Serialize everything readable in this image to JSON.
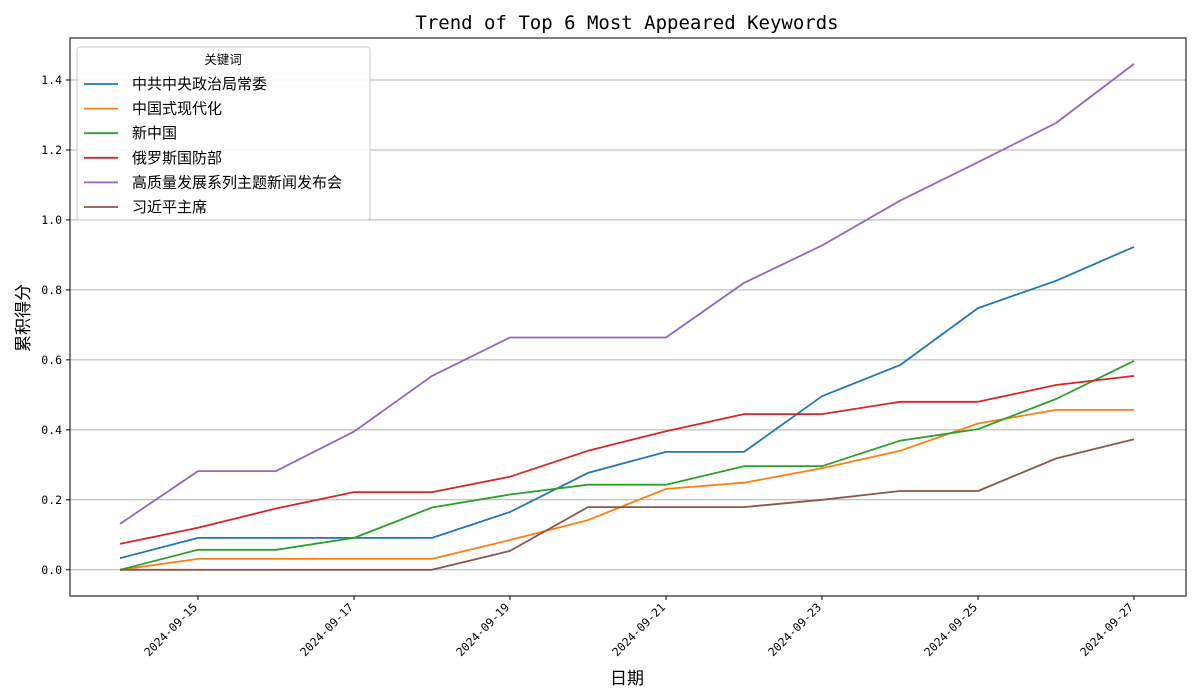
{
  "chart_data": {
    "type": "line",
    "title": "Trend of Top 6 Most Appeared Keywords",
    "xlabel": "日期",
    "ylabel": "累积得分",
    "x": [
      "2024-09-14",
      "2024-09-15",
      "2024-09-16",
      "2024-09-17",
      "2024-09-18",
      "2024-09-19",
      "2024-09-20",
      "2024-09-21",
      "2024-09-22",
      "2024-09-23",
      "2024-09-24",
      "2024-09-25",
      "2024-09-26",
      "2024-09-27"
    ],
    "xticks": [
      "2024-09-15",
      "2024-09-17",
      "2024-09-19",
      "2024-09-21",
      "2024-09-23",
      "2024-09-25",
      "2024-09-27"
    ],
    "yticks": [
      "0.0",
      "0.2",
      "0.4",
      "0.6",
      "0.8",
      "1.0",
      "1.2",
      "1.4"
    ],
    "ylim": [
      -0.075,
      1.52
    ],
    "grid": "horizontal",
    "legend": {
      "title": "关键词",
      "placement": "top-left"
    },
    "series": [
      {
        "name": "中共中央政治局常委",
        "color": "#1f77b4",
        "values": [
          0.033,
          0.091,
          0.091,
          0.091,
          0.091,
          0.165,
          0.277,
          0.337,
          0.337,
          0.496,
          0.585,
          0.748,
          0.826,
          0.923
        ]
      },
      {
        "name": "中国式现代化",
        "color": "#ff7f0e",
        "values": [
          0.0,
          0.031,
          0.031,
          0.031,
          0.031,
          0.085,
          0.142,
          0.231,
          0.249,
          0.29,
          0.34,
          0.418,
          0.457,
          0.457
        ]
      },
      {
        "name": "新中国",
        "color": "#2ca02c",
        "values": [
          0.0,
          0.057,
          0.057,
          0.091,
          0.178,
          0.215,
          0.243,
          0.243,
          0.296,
          0.296,
          0.369,
          0.402,
          0.488,
          0.597
        ]
      },
      {
        "name": "俄罗斯国防部",
        "color": "#d62728",
        "values": [
          0.074,
          0.12,
          0.175,
          0.222,
          0.222,
          0.266,
          0.34,
          0.396,
          0.445,
          0.445,
          0.48,
          0.48,
          0.528,
          0.554
        ]
      },
      {
        "name": "高质量发展系列主题新闻发布会",
        "color": "#9467bd",
        "values": [
          0.131,
          0.282,
          0.282,
          0.395,
          0.554,
          0.664,
          0.664,
          0.664,
          0.82,
          0.927,
          1.055,
          1.165,
          1.277,
          1.446
        ]
      },
      {
        "name": "习近平主席",
        "color": "#8c564b",
        "values": [
          0.0,
          0.0,
          0.0,
          0.0,
          0.0,
          0.054,
          0.179,
          0.179,
          0.179,
          0.2,
          0.225,
          0.225,
          0.318,
          0.373
        ]
      }
    ]
  }
}
